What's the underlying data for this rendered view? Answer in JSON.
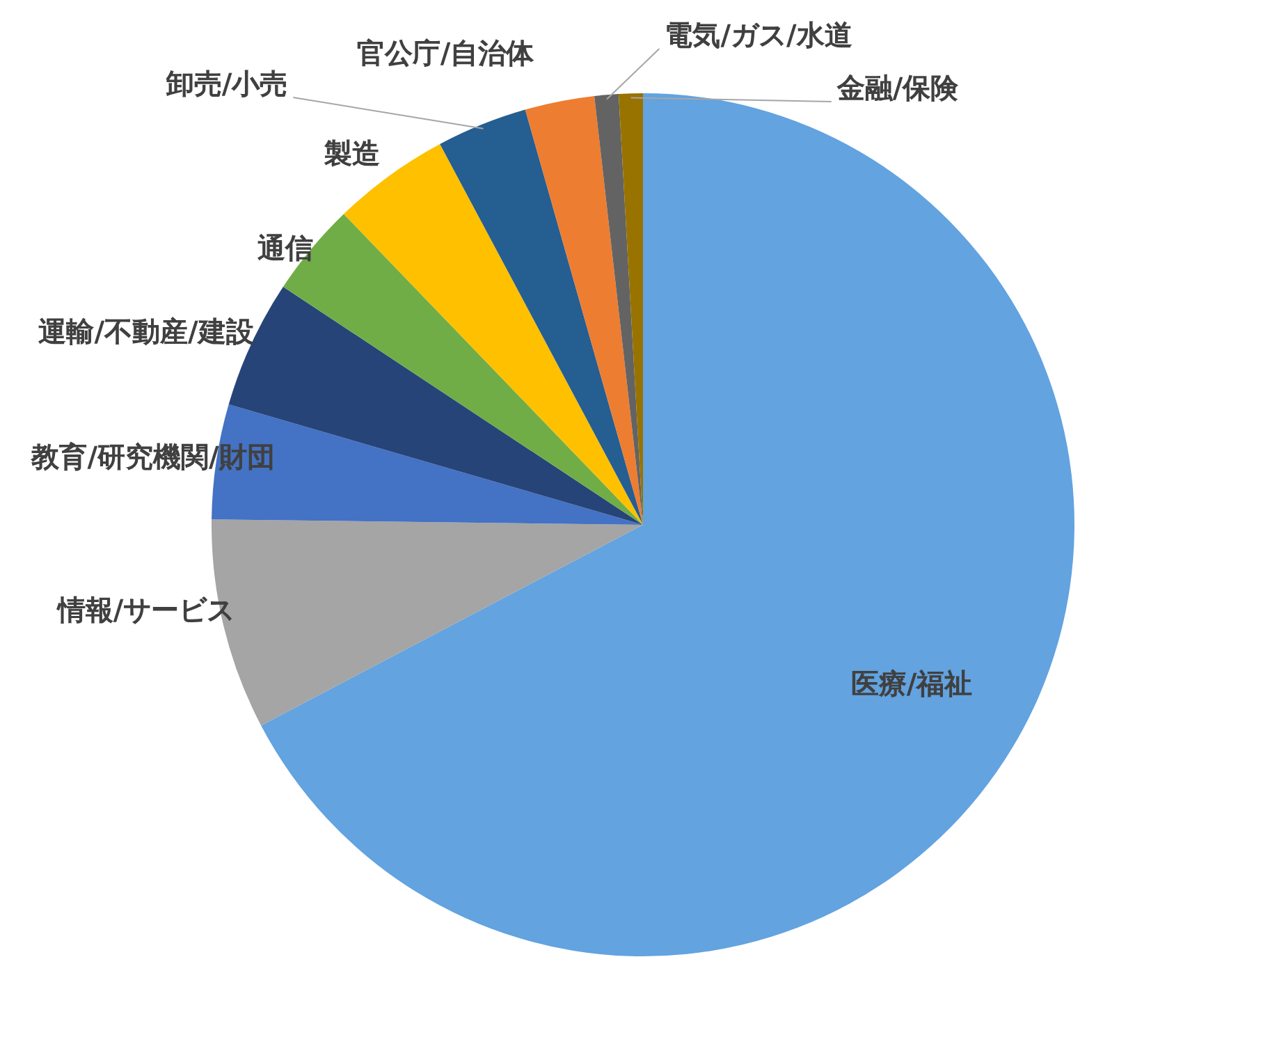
{
  "chart_data": {
    "type": "pie",
    "categories": [
      "医療/福祉",
      "情報/サービス",
      "教育/研究機関/財団",
      "運輸/不動産/建設",
      "通信",
      "製造",
      "卸売/小売",
      "官公庁/自治体",
      "電気/ガス/水道",
      "金融/保険"
    ],
    "values": [
      67.3,
      7.9,
      4.3,
      4.8,
      3.5,
      4.4,
      3.4,
      2.6,
      0.9,
      0.9
    ],
    "colors": [
      "#62a3e0",
      "#a5a5a5",
      "#4472c4",
      "#264478",
      "#70ad47",
      "#ffc000",
      "#255e91",
      "#ed7d31",
      "#636363",
      "#997300"
    ]
  }
}
